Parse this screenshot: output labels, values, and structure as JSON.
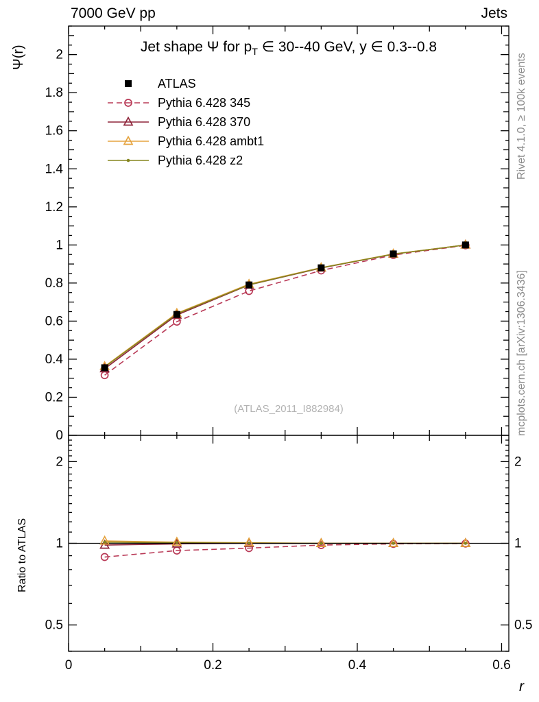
{
  "header": {
    "left": "7000 GeV pp",
    "right": "Jets"
  },
  "captions": {
    "rivet": "Rivet 4.1.0, ≥ 100k events",
    "mcplots": "mcplots.cern.ch [arXiv:1306.3436]",
    "watermark": "(ATLAS_2011_I882984)"
  },
  "title": {
    "pre": "Jet shape Ψ for p",
    "sub": "T",
    "post": " ∈ 30--40 GeV, y ∈ 0.3--0.8"
  },
  "axes": {
    "main_ylabel": "Ψ(r)",
    "ratio_ylabel": "Ratio to ATLAS",
    "xlabel": "r"
  },
  "chart_data": {
    "type": "line",
    "title": "Jet shape Ψ for pT ∈ 30--40 GeV, y ∈ 0.3--0.8",
    "xlabel": "r",
    "ylabel": "Ψ(r)",
    "ratio_ylabel": "Ratio to ATLAS",
    "legend_position": "top-left",
    "x": [
      0.05,
      0.15,
      0.25,
      0.35,
      0.45,
      0.55
    ],
    "layout": {
      "xlim": [
        0,
        0.61
      ],
      "ylim_main": [
        0,
        2.15
      ],
      "ylim_ratio": [
        0.4,
        2.5
      ],
      "ratio_scale": "log"
    },
    "main_ticks": {
      "values": [
        0,
        0.2,
        0.4,
        0.6,
        0.8,
        1,
        1.2,
        1.4,
        1.6,
        1.8,
        2
      ],
      "labels": [
        "0",
        "0.2",
        "0.4",
        "0.6",
        "0.8",
        "1",
        "1.2",
        "1.4",
        "1.6",
        "1.8",
        "2"
      ]
    },
    "x_ticks": {
      "values": [
        0,
        0.2,
        0.4,
        0.6
      ],
      "labels": [
        "0",
        "0.2",
        "0.4",
        "0.6"
      ]
    },
    "ratio_ticks": {
      "major": [
        0.5,
        1,
        2
      ],
      "labels": [
        "0.5",
        "1",
        "2"
      ],
      "minor": [
        0.4,
        0.6,
        0.7,
        0.8,
        0.9,
        1.1,
        1.2,
        1.3,
        1.4,
        1.5,
        1.6,
        1.7,
        1.8,
        1.9,
        2.1,
        2.2,
        2.3,
        2.4
      ]
    },
    "series": [
      {
        "name": "ATLAS",
        "color": "#000000",
        "line": "none",
        "marker": "square",
        "values": [
          0.355,
          0.635,
          0.79,
          0.88,
          0.953,
          1.0
        ],
        "ratio": null
      },
      {
        "name": "Pythia 6.428 345",
        "color": "#b93a57",
        "line": "dashed",
        "marker": "circle",
        "values": [
          0.316,
          0.597,
          0.758,
          0.866,
          0.947,
          0.998
        ],
        "ratio": [
          0.89,
          0.94,
          0.96,
          0.985,
          0.995,
          0.998
        ]
      },
      {
        "name": "Pythia 6.428 370",
        "color": "#8e2339",
        "line": "solid",
        "marker": "triangle",
        "values": [
          0.35,
          0.632,
          0.79,
          0.879,
          0.952,
          1.0
        ],
        "ratio": [
          0.985,
          0.995,
          1.0,
          0.999,
          0.999,
          1.0
        ]
      },
      {
        "name": "Pythia 6.428 ambt1",
        "color": "#e5a33e",
        "line": "solid",
        "marker": "triangle",
        "values": [
          0.362,
          0.641,
          0.794,
          0.881,
          0.953,
          1.0
        ],
        "ratio": [
          1.02,
          1.01,
          1.005,
          1.0,
          1.0,
          1.0
        ]
      },
      {
        "name": "Pythia 6.428 z2",
        "color": "#85851f",
        "line": "solid",
        "marker": "dot",
        "values": [
          0.359,
          0.638,
          0.791,
          0.88,
          0.952,
          1.0
        ],
        "ratio": [
          1.01,
          1.005,
          1.001,
          1.0,
          1.0,
          1.0
        ]
      }
    ]
  }
}
